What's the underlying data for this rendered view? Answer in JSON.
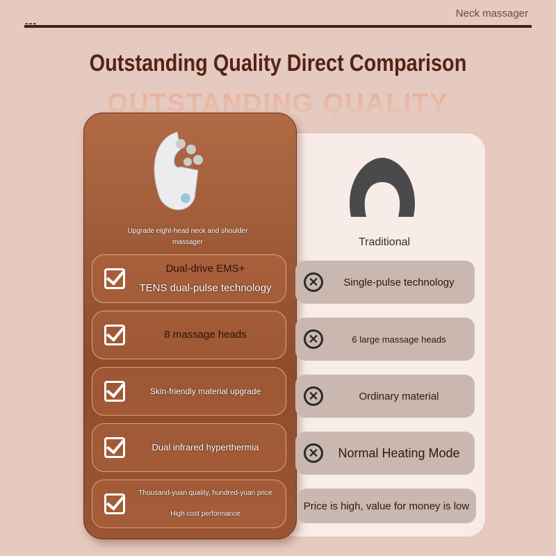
{
  "header": {
    "decoration": "---",
    "brand": "Neck massager"
  },
  "title": "Outstanding Quality Direct Comparison",
  "ghost_title": "OUTSTANDING QUALITY",
  "left": {
    "caption": "Upgrade eight-head neck and shoulder massager",
    "rows": [
      {
        "line1": "Dual-drive EMS+",
        "line2": "TENS dual-pulse technology"
      },
      {
        "line1": "8 massage heads",
        "line2": ""
      },
      {
        "line1": "Skin-friendly material upgrade",
        "line2": ""
      },
      {
        "line1": "Dual infrared hyperthermia",
        "line2": ""
      },
      {
        "line1": "Thousand-yuan quality, hundred-yuan price",
        "line2": "High cost performance"
      }
    ]
  },
  "right": {
    "caption": "Traditional",
    "rows": [
      "Single-pulse technology",
      "6 large massage heads",
      "Ordinary material",
      "Normal Heating Mode",
      "Price is high, value for money is low"
    ]
  },
  "colors": {
    "accent": "#522413",
    "left_card": "#9a5534",
    "right_card": "#f8ece8"
  }
}
